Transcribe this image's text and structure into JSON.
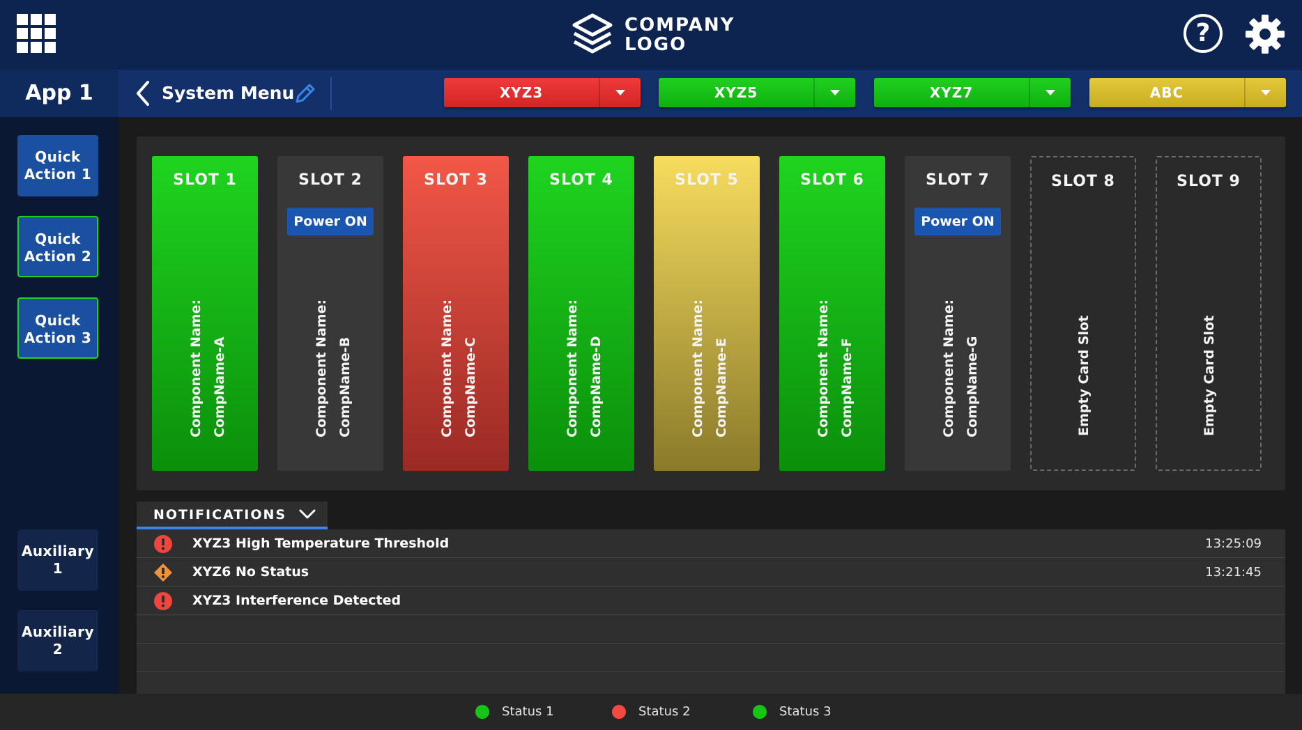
{
  "header": {
    "logo_line1": "COMPANY",
    "logo_line2": "LOGO",
    "help_icon": "question-icon",
    "settings_icon": "gear-icon",
    "apps_icon": "app-grid-icon"
  },
  "subheader": {
    "app_title": "App 1",
    "menu_title": "System Menu",
    "dropdowns": [
      {
        "label": "XYZ3",
        "color": "#d32525"
      },
      {
        "label": "XYZ5",
        "color": "#0fb10f"
      },
      {
        "label": "XYZ7",
        "color": "#0fb10f"
      },
      {
        "label": "ABC",
        "color": "#c9ad21"
      }
    ]
  },
  "sidebar": {
    "quick_actions": [
      {
        "line1": "Quick",
        "line2": "Action 1"
      },
      {
        "line1": "Quick",
        "line2": "Action 2"
      },
      {
        "line1": "Quick",
        "line2": "Action 3"
      }
    ],
    "auxiliary": [
      {
        "line1": "Auxiliary",
        "line2": "1"
      },
      {
        "line1": "Auxiliary",
        "line2": "2"
      }
    ]
  },
  "slots": [
    {
      "title": "SLOT 1",
      "status": "green",
      "line1": "Component Name:",
      "line2": "CompName-A",
      "button": ""
    },
    {
      "title": "SLOT 2",
      "status": "off",
      "line1": "Component Name:",
      "line2": "CompName-B",
      "button": "Power ON"
    },
    {
      "title": "SLOT 3",
      "status": "red",
      "line1": "Component Name:",
      "line2": "CompName-C",
      "button": ""
    },
    {
      "title": "SLOT 4",
      "status": "green",
      "line1": "Component Name:",
      "line2": "CompName-D",
      "button": ""
    },
    {
      "title": "SLOT 5",
      "status": "yellow",
      "line1": "Component Name:",
      "line2": "CompName-E",
      "button": ""
    },
    {
      "title": "SLOT 6",
      "status": "green",
      "line1": "Component Name:",
      "line2": "CompName-F",
      "button": ""
    },
    {
      "title": "SLOT 7",
      "status": "off",
      "line1": "Component Name:",
      "line2": "CompName-G",
      "button": "Power ON"
    },
    {
      "title": "SLOT 8",
      "status": "empty",
      "line1": "Empty Card Slot",
      "line2": "",
      "button": ""
    },
    {
      "title": "SLOT 9",
      "status": "empty",
      "line1": "Empty Card Slot",
      "line2": "",
      "button": ""
    }
  ],
  "notifications": {
    "tab_label": "NOTIFICATIONS",
    "items": [
      {
        "severity": "error",
        "text": "XYZ3 High Temperature Threshold",
        "time": "13:25:09"
      },
      {
        "severity": "warning",
        "text": "XYZ6 No Status",
        "time": "13:21:45"
      },
      {
        "severity": "error",
        "text": "XYZ3 Interference Detected",
        "time": ""
      }
    ]
  },
  "statusbar": [
    {
      "label": "Status 1",
      "color": "#19c419"
    },
    {
      "label": "Status 2",
      "color": "#f04a43"
    },
    {
      "label": "Status 3",
      "color": "#19c419"
    }
  ]
}
